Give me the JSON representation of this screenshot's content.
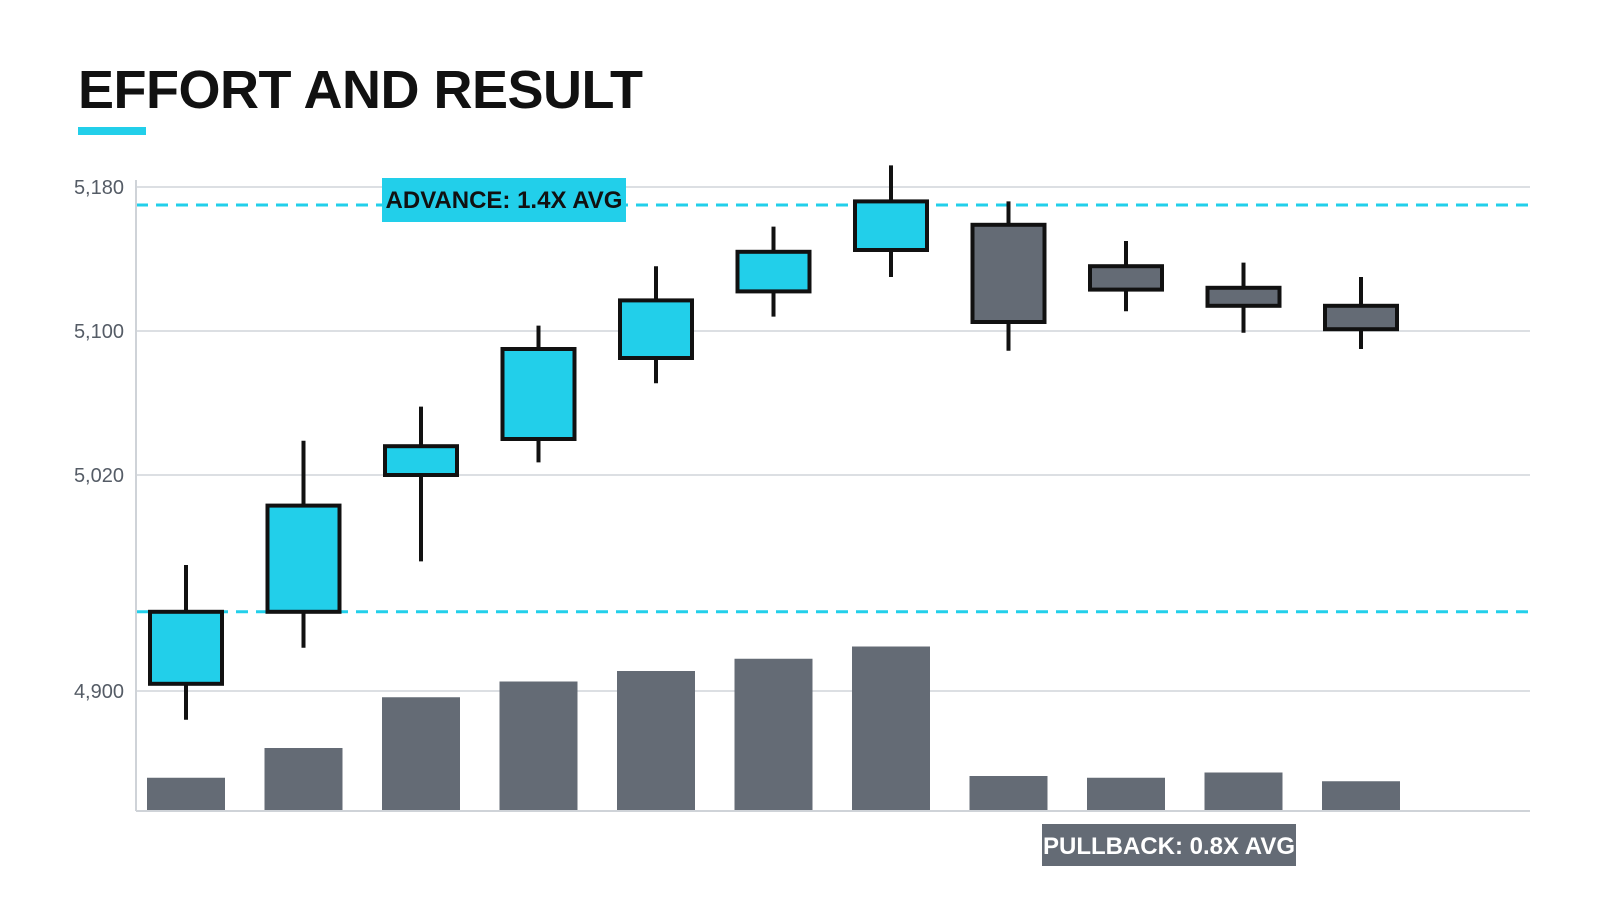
{
  "title": "EFFORT AND RESULT",
  "colors": {
    "accent": "#22cfea",
    "up_candle": "#22cfea",
    "down_candle": "#646b75",
    "volume_bar": "#646b75",
    "outline": "#111111",
    "grid": "#dcdfe3"
  },
  "chart_data": {
    "type": "candlestick",
    "title": "EFFORT AND RESULT",
    "ylim": [
      4850,
      5190
    ],
    "yticks": [
      4900,
      5020,
      5100,
      5180
    ],
    "ytick_labels": [
      "4,900",
      "5,020",
      "5,100",
      "5,180"
    ],
    "grid": "horizontal",
    "candles": [
      {
        "open": 4904,
        "high": 4970,
        "low": 4884,
        "close": 4944
      },
      {
        "open": 4944,
        "high": 5039,
        "low": 4924,
        "close": 5003
      },
      {
        "open": 5020,
        "high": 5058,
        "low": 4972,
        "close": 5036
      },
      {
        "open": 5040,
        "high": 5103,
        "low": 5027,
        "close": 5090
      },
      {
        "open": 5085,
        "high": 5136,
        "low": 5071,
        "close": 5117
      },
      {
        "open": 5122,
        "high": 5158,
        "low": 5108,
        "close": 5144
      },
      {
        "open": 5145,
        "high": 5192,
        "low": 5130,
        "close": 5172
      },
      {
        "open": 5159,
        "high": 5172,
        "low": 5089,
        "close": 5105
      },
      {
        "open": 5136,
        "high": 5150,
        "low": 5111,
        "close": 5123
      },
      {
        "open": 5124,
        "high": 5138,
        "low": 5099,
        "close": 5114
      },
      {
        "open": 5114,
        "high": 5130,
        "low": 5090,
        "close": 5101
      }
    ],
    "volume_relative": [
      0.19,
      0.36,
      0.65,
      0.74,
      0.8,
      0.87,
      0.94,
      0.2,
      0.19,
      0.22,
      0.17
    ],
    "reference_lines": [
      {
        "value": 5170,
        "style": "dashed"
      },
      {
        "value": 4944,
        "style": "dashed"
      }
    ],
    "annotations": {
      "advance": "ADVANCE: 1.4X AVG",
      "pullback": "PULLBACK: 0.8X AVG"
    }
  }
}
